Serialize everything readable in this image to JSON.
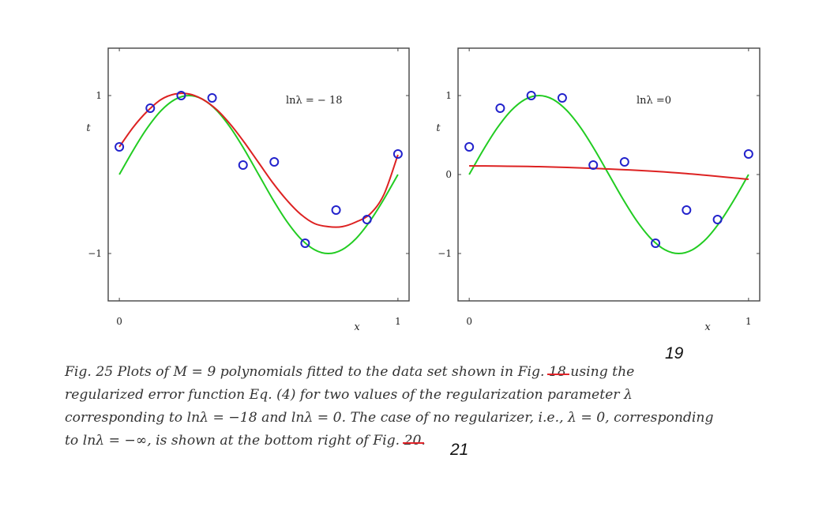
{
  "chart_data": [
    {
      "type": "line",
      "title": "",
      "annotation": "lnλ = − 18",
      "xlabel": "x",
      "ylabel": "t",
      "xlim": [
        -0.04,
        1.04
      ],
      "ylim": [
        -1.6,
        1.6
      ],
      "x_ticks": [
        "0",
        "1"
      ],
      "y_ticks": [
        "1",
        "−1"
      ],
      "grid": false,
      "legend": "none",
      "points": [
        {
          "x": 0.0,
          "y": 0.35
        },
        {
          "x": 0.111,
          "y": 0.84
        },
        {
          "x": 0.222,
          "y": 1.0
        },
        {
          "x": 0.333,
          "y": 0.97
        },
        {
          "x": 0.444,
          "y": 0.12
        },
        {
          "x": 0.556,
          "y": 0.16
        },
        {
          "x": 0.667,
          "y": -0.87
        },
        {
          "x": 0.778,
          "y": -0.45
        },
        {
          "x": 0.889,
          "y": -0.57
        },
        {
          "x": 1.0,
          "y": 0.26
        }
      ],
      "series": [
        {
          "color": "#22cc22",
          "x": [
            0,
            0.05,
            0.1,
            0.15,
            0.2,
            0.25,
            0.3,
            0.35,
            0.4,
            0.45,
            0.5,
            0.55,
            0.6,
            0.65,
            0.7,
            0.75,
            0.8,
            0.85,
            0.9,
            0.95,
            1.0
          ],
          "y": [
            0,
            0.309,
            0.588,
            0.809,
            0.951,
            1.0,
            0.951,
            0.809,
            0.588,
            0.309,
            0,
            -0.309,
            -0.588,
            -0.809,
            -0.951,
            -1.0,
            -0.951,
            -0.809,
            -0.588,
            -0.309,
            0
          ]
        },
        {
          "color": "#dd2222",
          "x": [
            0,
            0.05,
            0.1,
            0.15,
            0.2,
            0.25,
            0.3,
            0.35,
            0.4,
            0.45,
            0.5,
            0.55,
            0.6,
            0.65,
            0.7,
            0.75,
            0.8,
            0.85,
            0.9,
            0.95,
            1.0
          ],
          "y": [
            0.35,
            0.6,
            0.8,
            0.95,
            1.02,
            1.02,
            0.95,
            0.82,
            0.63,
            0.4,
            0.15,
            -0.1,
            -0.32,
            -0.5,
            -0.62,
            -0.66,
            -0.66,
            -0.6,
            -0.5,
            -0.25,
            0.25
          ]
        }
      ]
    },
    {
      "type": "line",
      "title": "",
      "annotation": "lnλ =0",
      "xlabel": "x",
      "ylabel": "t",
      "xlim": [
        -0.04,
        1.04
      ],
      "ylim": [
        -1.6,
        1.6
      ],
      "x_ticks": [
        "0",
        "1"
      ],
      "y_ticks": [
        "1",
        "0",
        "−1"
      ],
      "grid": false,
      "legend": "none",
      "points": [
        {
          "x": 0.0,
          "y": 0.35
        },
        {
          "x": 0.111,
          "y": 0.84
        },
        {
          "x": 0.222,
          "y": 1.0
        },
        {
          "x": 0.333,
          "y": 0.97
        },
        {
          "x": 0.444,
          "y": 0.12
        },
        {
          "x": 0.556,
          "y": 0.16
        },
        {
          "x": 0.667,
          "y": -0.87
        },
        {
          "x": 0.778,
          "y": -0.45
        },
        {
          "x": 0.889,
          "y": -0.57
        },
        {
          "x": 1.0,
          "y": 0.26
        }
      ],
      "series": [
        {
          "color": "#22cc22",
          "x": [
            0,
            0.05,
            0.1,
            0.15,
            0.2,
            0.25,
            0.3,
            0.35,
            0.4,
            0.45,
            0.5,
            0.55,
            0.6,
            0.65,
            0.7,
            0.75,
            0.8,
            0.85,
            0.9,
            0.95,
            1.0
          ],
          "y": [
            0,
            0.309,
            0.588,
            0.809,
            0.951,
            1.0,
            0.951,
            0.809,
            0.588,
            0.309,
            0,
            -0.309,
            -0.588,
            -0.809,
            -0.951,
            -1.0,
            -0.951,
            -0.809,
            -0.588,
            -0.309,
            0
          ]
        },
        {
          "color": "#dd2222",
          "x": [
            0,
            0.25,
            0.5,
            0.75,
            1.0
          ],
          "y": [
            0.11,
            0.1,
            0.07,
            0.02,
            -0.06
          ]
        }
      ]
    }
  ],
  "caption": {
    "line1_a": "Fig. 25 Plots of M = 9 polynomials fitted to the data set shown in Fig. ",
    "line1_struck": "18",
    "line1_b": " using the",
    "line2": "regularized error function Eq. (4) for two values of the regularization parameter λ",
    "line3": "corresponding to lnλ = −18 and lnλ = 0. The case of no regularizer, i.e., λ = 0, corresponding",
    "line4_a": "to lnλ = −∞, is shown at the bottom right of Fig. ",
    "line4_struck": "20",
    "line4_b": ".",
    "correction_top": "19",
    "correction_bottom": "21"
  },
  "colors": {
    "points": "#2222cc",
    "truth_curve": "#22cc22",
    "fit_curve": "#dd2222",
    "strike": "#e0242a"
  }
}
